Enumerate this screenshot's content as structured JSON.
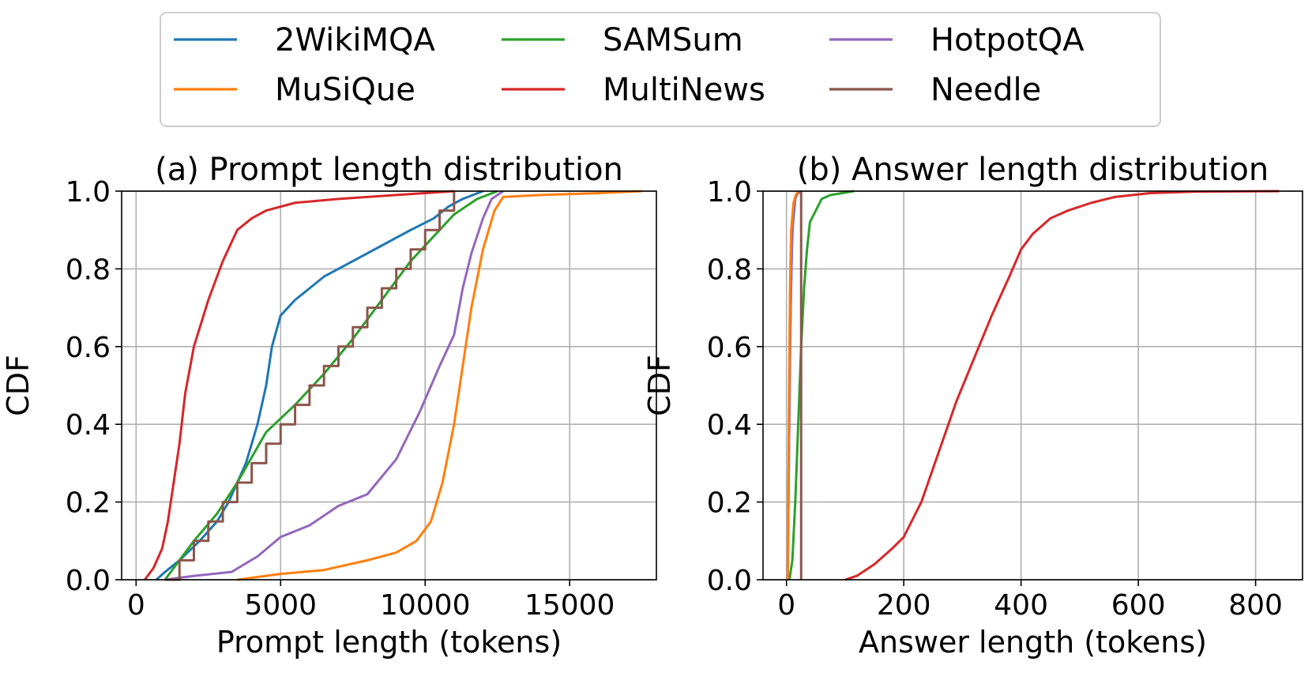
{
  "legend": {
    "entries": [
      {
        "name": "2WikiMQA",
        "color": "#1f77b4"
      },
      {
        "name": "SAMSum",
        "color": "#2ca02c"
      },
      {
        "name": "HotpotQA",
        "color": "#9467bd"
      },
      {
        "name": "MuSiQue",
        "color": "#ff7f0e"
      },
      {
        "name": "MultiNews",
        "color": "#d62728"
      },
      {
        "name": "Needle",
        "color": "#8c564b"
      }
    ]
  },
  "chart_data": [
    {
      "type": "line",
      "title": "(a) Prompt length distribution",
      "xlabel": "Prompt length (tokens)",
      "ylabel": "CDF",
      "xlim": [
        -500,
        18000
      ],
      "ylim": [
        0,
        1
      ],
      "xticks": [
        0,
        5000,
        10000,
        15000
      ],
      "xtick_labels": [
        "0",
        "5000",
        "10000",
        "15000"
      ],
      "yticks": [
        0,
        0.2,
        0.4,
        0.6,
        0.8,
        1.0
      ],
      "ytick_labels": [
        "0.0",
        "0.2",
        "0.4",
        "0.6",
        "0.8",
        "1.0"
      ],
      "grid": true,
      "series": [
        {
          "name": "2WikiMQA",
          "color": "#1f77b4",
          "step": false,
          "x": [
            700,
            1000,
            1500,
            2200,
            2800,
            3200,
            3800,
            4200,
            4500,
            4700,
            5000,
            5500,
            6000,
            6500,
            7500,
            8500,
            9500,
            10300,
            10800,
            11300,
            12000
          ],
          "y": [
            0,
            0.02,
            0.05,
            0.1,
            0.15,
            0.2,
            0.3,
            0.4,
            0.5,
            0.6,
            0.68,
            0.72,
            0.75,
            0.78,
            0.82,
            0.86,
            0.9,
            0.93,
            0.96,
            0.98,
            1.0
          ]
        },
        {
          "name": "SAMSum",
          "color": "#2ca02c",
          "step": false,
          "x": [
            1000,
            1500,
            2000,
            2800,
            3500,
            4500,
            5500,
            6500,
            7500,
            8500,
            9500,
            10500,
            11000,
            11800,
            12500
          ],
          "y": [
            0,
            0.05,
            0.1,
            0.17,
            0.25,
            0.38,
            0.45,
            0.53,
            0.62,
            0.72,
            0.82,
            0.9,
            0.94,
            0.98,
            1.0
          ]
        },
        {
          "name": "HotpotQA",
          "color": "#9467bd",
          "step": false,
          "x": [
            1000,
            2000,
            3300,
            4200,
            5000,
            6000,
            7000,
            8000,
            9000,
            9800,
            10500,
            11000,
            11300,
            11600,
            12000,
            12300,
            12700
          ],
          "y": [
            0,
            0.01,
            0.02,
            0.06,
            0.11,
            0.14,
            0.19,
            0.22,
            0.31,
            0.43,
            0.55,
            0.63,
            0.75,
            0.84,
            0.93,
            0.98,
            1.0
          ]
        },
        {
          "name": "MuSiQue",
          "color": "#ff7f0e",
          "step": false,
          "x": [
            3500,
            5000,
            6500,
            8000,
            9000,
            9700,
            10200,
            10600,
            11000,
            11300,
            11600,
            12000,
            12400,
            12700,
            14000,
            16000,
            17500
          ],
          "y": [
            0,
            0.015,
            0.025,
            0.05,
            0.07,
            0.1,
            0.15,
            0.25,
            0.4,
            0.55,
            0.7,
            0.85,
            0.95,
            0.985,
            0.99,
            0.995,
            1.0
          ]
        },
        {
          "name": "MultiNews",
          "color": "#d62728",
          "step": false,
          "x": [
            300,
            600,
            900,
            1100,
            1300,
            1500,
            1700,
            2000,
            2500,
            3000,
            3500,
            4000,
            4500,
            5500,
            7000,
            9000,
            11000
          ],
          "y": [
            0,
            0.03,
            0.08,
            0.15,
            0.25,
            0.35,
            0.48,
            0.6,
            0.72,
            0.82,
            0.9,
            0.93,
            0.95,
            0.97,
            0.98,
            0.99,
            1.0
          ]
        },
        {
          "name": "Needle",
          "color": "#8c564b",
          "step": true,
          "x": [
            1000,
            1500,
            2000,
            2500,
            3000,
            3500,
            4000,
            4500,
            5000,
            5500,
            6000,
            6500,
            7000,
            7500,
            8000,
            8500,
            9000,
            9500,
            10000,
            10500,
            11000
          ],
          "y": [
            0,
            0.05,
            0.1,
            0.15,
            0.2,
            0.25,
            0.3,
            0.35,
            0.4,
            0.45,
            0.5,
            0.55,
            0.6,
            0.65,
            0.7,
            0.75,
            0.8,
            0.85,
            0.9,
            0.95,
            1.0
          ]
        }
      ]
    },
    {
      "type": "line",
      "title": "(b) Answer length distribution",
      "xlabel": "Answer length (tokens)",
      "ylabel": "CDF",
      "xlim": [
        -40,
        880
      ],
      "ylim": [
        0,
        1
      ],
      "xticks": [
        0,
        200,
        400,
        600,
        800
      ],
      "xtick_labels": [
        "0",
        "200",
        "400",
        "600",
        "800"
      ],
      "yticks": [
        0,
        0.2,
        0.4,
        0.6,
        0.8,
        1.0
      ],
      "ytick_labels": [
        "0.0",
        "0.2",
        "0.4",
        "0.6",
        "0.8",
        "1.0"
      ],
      "grid": true,
      "series": [
        {
          "name": "2WikiMQA",
          "color": "#1f77b4",
          "step": false,
          "x": [
            2,
            4,
            7,
            10,
            15,
            20
          ],
          "y": [
            0,
            0.3,
            0.7,
            0.9,
            0.98,
            1.0
          ]
        },
        {
          "name": "SAMSum",
          "color": "#2ca02c",
          "step": false,
          "x": [
            5,
            10,
            15,
            20,
            25,
            30,
            35,
            40,
            50,
            60,
            75,
            95,
            115
          ],
          "y": [
            0,
            0.05,
            0.2,
            0.4,
            0.6,
            0.75,
            0.85,
            0.92,
            0.95,
            0.98,
            0.99,
            0.995,
            1.0
          ]
        },
        {
          "name": "HotpotQA",
          "color": "#9467bd",
          "step": false,
          "x": [
            2,
            4,
            6,
            9,
            12,
            16,
            25
          ],
          "y": [
            0,
            0.3,
            0.6,
            0.85,
            0.95,
            0.99,
            1.0
          ]
        },
        {
          "name": "MuSiQue",
          "color": "#ff7f0e",
          "step": false,
          "x": [
            2,
            4,
            6,
            8,
            12,
            16,
            20
          ],
          "y": [
            0,
            0.4,
            0.75,
            0.9,
            0.97,
            0.99,
            1.0
          ]
        },
        {
          "name": "MultiNews",
          "color": "#d62728",
          "step": false,
          "x": [
            100,
            120,
            150,
            180,
            200,
            230,
            260,
            290,
            320,
            350,
            380,
            400,
            420,
            450,
            480,
            520,
            560,
            620,
            700,
            840
          ],
          "y": [
            0,
            0.01,
            0.04,
            0.08,
            0.11,
            0.2,
            0.33,
            0.46,
            0.57,
            0.68,
            0.78,
            0.85,
            0.89,
            0.93,
            0.95,
            0.97,
            0.985,
            0.995,
            0.999,
            1.0
          ]
        },
        {
          "name": "Needle",
          "color": "#8c564b",
          "step": true,
          "x": [
            25,
            25,
            25
          ],
          "y": [
            0,
            0.5,
            1.0
          ]
        }
      ]
    }
  ]
}
